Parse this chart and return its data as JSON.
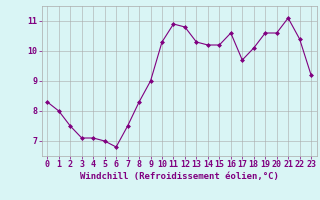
{
  "x": [
    0,
    1,
    2,
    3,
    4,
    5,
    6,
    7,
    8,
    9,
    10,
    11,
    12,
    13,
    14,
    15,
    16,
    17,
    18,
    19,
    20,
    21,
    22,
    23
  ],
  "y": [
    8.3,
    8.0,
    7.5,
    7.1,
    7.1,
    7.0,
    6.8,
    7.5,
    8.3,
    9.0,
    10.3,
    10.9,
    10.8,
    10.3,
    10.2,
    10.2,
    10.6,
    9.7,
    10.1,
    10.6,
    10.6,
    11.1,
    10.4,
    9.2
  ],
  "line_color": "#800080",
  "marker": "D",
  "marker_size": 2,
  "bg_color": "#d9f5f5",
  "grid_color": "#aaaaaa",
  "xlabel": "Windchill (Refroidissement éolien,°C)",
  "xlabel_fontsize": 6.5,
  "xtick_labels": [
    "0",
    "1",
    "2",
    "3",
    "4",
    "5",
    "6",
    "7",
    "8",
    "9",
    "10",
    "11",
    "12",
    "13",
    "14",
    "15",
    "16",
    "17",
    "18",
    "19",
    "20",
    "21",
    "22",
    "23"
  ],
  "ytick_labels": [
    "7",
    "8",
    "9",
    "10",
    "11"
  ],
  "yticks": [
    7,
    8,
    9,
    10,
    11
  ],
  "ylim": [
    6.5,
    11.5
  ],
  "xlim": [
    -0.5,
    23.5
  ],
  "tick_fontsize": 6,
  "tick_color": "#800080",
  "label_color": "#800080",
  "linewidth": 0.8
}
